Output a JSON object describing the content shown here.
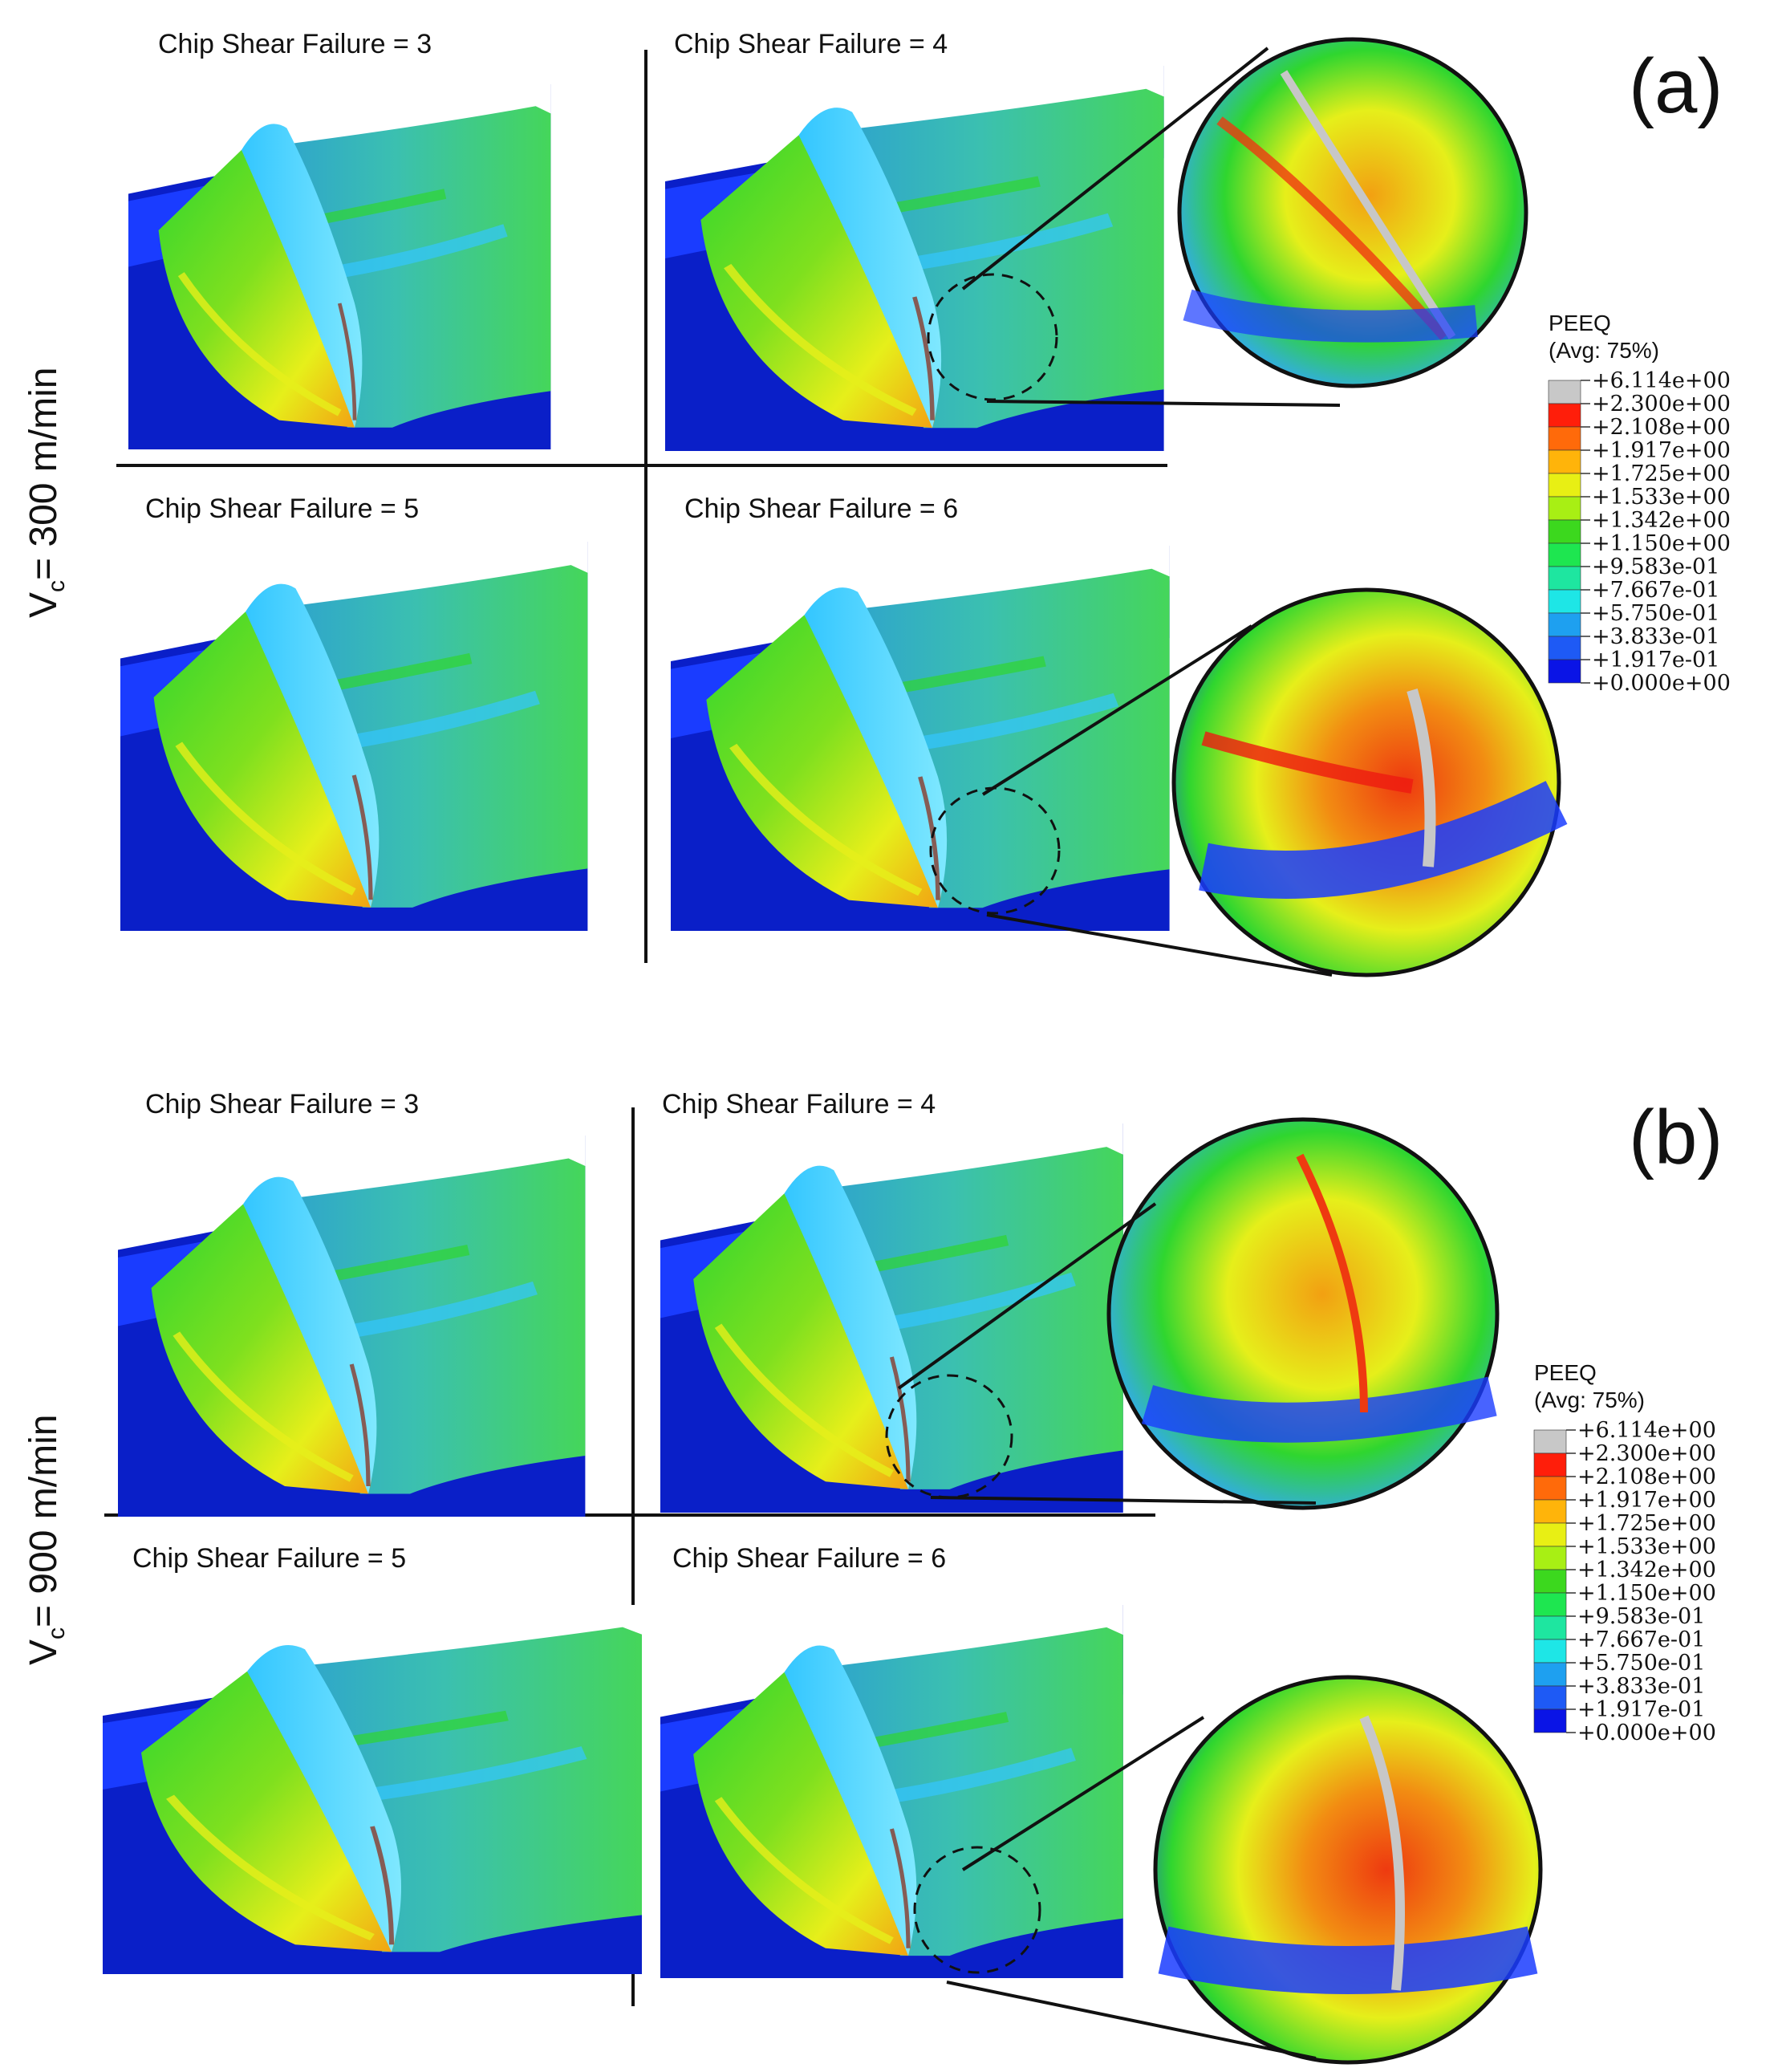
{
  "colors": {
    "bg_blue": "#0a1fc8",
    "top_blue": "#1a3cff",
    "cyan": "#33c6ff",
    "green": "#2fd62f",
    "yellow": "#e6ef1a",
    "orange": "#f28c12",
    "red": "#ee1a10",
    "gray": "#c7c7c7"
  },
  "panels": [
    {
      "tag": "(a)",
      "speed_label": "V",
      "speed_sub": "c",
      "speed_value": "= 300 m/min",
      "captions": [
        "Chip Shear Failure = 3",
        "Chip Shear Failure = 4",
        "Chip Shear Failure = 5",
        "Chip Shear Failure = 6"
      ],
      "legend": {
        "title": "PEEQ",
        "subtitle": "(Avg: 75%)",
        "values": [
          "+6.114e+00",
          "+2.300e+00",
          "+2.108e+00",
          "+1.917e+00",
          "+1.725e+00",
          "+1.533e+00",
          "+1.342e+00",
          "+1.150e+00",
          "+9.583e-01",
          "+7.667e-01",
          "+5.750e-01",
          "+3.833e-01",
          "+1.917e-01",
          "+0.000e+00"
        ],
        "swatches": [
          "#c8c8c8",
          "#ff1e0a",
          "#ff6a0a",
          "#ffb40a",
          "#e8ef14",
          "#a8ef14",
          "#3cd81e",
          "#1ee650",
          "#1ee6a0",
          "#1ee6e6",
          "#1ea0f0",
          "#1e5af5",
          "#0a14e6"
        ]
      }
    },
    {
      "tag": "(b)",
      "speed_label": "V",
      "speed_sub": "c",
      "speed_value": "= 900 m/min",
      "captions": [
        "Chip Shear Failure = 3",
        "Chip Shear Failure = 4",
        "Chip Shear Failure = 5",
        "Chip Shear Failure = 6"
      ],
      "legend": {
        "title": "PEEQ",
        "subtitle": "(Avg: 75%)",
        "values": [
          "+6.114e+00",
          "+2.300e+00",
          "+2.108e+00",
          "+1.917e+00",
          "+1.725e+00",
          "+1.533e+00",
          "+1.342e+00",
          "+1.150e+00",
          "+9.583e-01",
          "+7.667e-01",
          "+5.750e-01",
          "+3.833e-01",
          "+1.917e-01",
          "+0.000e+00"
        ],
        "swatches": [
          "#c8c8c8",
          "#ff1e0a",
          "#ff6a0a",
          "#ffb40a",
          "#e8ef14",
          "#a8ef14",
          "#3cd81e",
          "#1ee650",
          "#1ee6a0",
          "#1ee6e6",
          "#1ea0f0",
          "#1e5af5",
          "#0a14e6"
        ]
      }
    }
  ]
}
